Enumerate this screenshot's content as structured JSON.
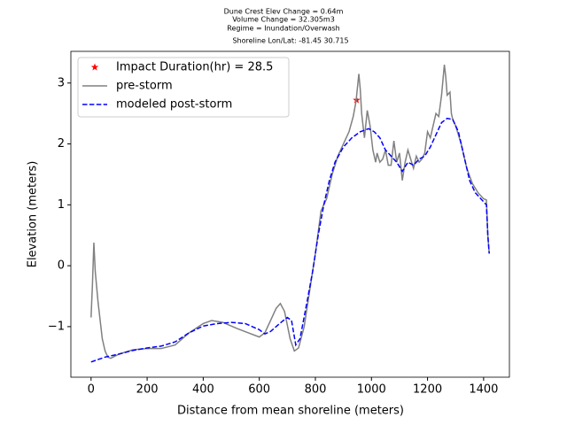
{
  "chart_data": {
    "type": "line",
    "title": [
      "Dune Crest Elev Change = 0.64m",
      "Volume Change = 32.305m3",
      "Regime = Inundation/Overwash",
      "Shoreline Lon/Lat: -81.45 30.715"
    ],
    "xlabel": "Distance from mean shoreline (meters)",
    "ylabel": "Elevation (meters)",
    "xlim": [
      -72,
      1492
    ],
    "ylim": [
      -1.83,
      3.52
    ],
    "xticks": [
      0,
      200,
      400,
      600,
      800,
      1000,
      1200,
      1400
    ],
    "yticks": [
      {
        "value": -1,
        "label": "−1"
      },
      0,
      1,
      2,
      3
    ],
    "legend": "upper left",
    "series": [
      {
        "name": "Impact Duration(hr) = 28.5",
        "color": "#ff0000",
        "style": "star",
        "x": [
          947
        ],
        "values": [
          2.72
        ]
      },
      {
        "name": "pre-storm",
        "color": "#808080",
        "style": "solid",
        "x": [
          0,
          5,
          10,
          15,
          25,
          40,
          50,
          60,
          70,
          100,
          150,
          200,
          250,
          300,
          350,
          400,
          430,
          470,
          520,
          560,
          600,
          620,
          640,
          660,
          675,
          690,
          710,
          725,
          740,
          760,
          780,
          800,
          820,
          840,
          860,
          880,
          900,
          920,
          935,
          945,
          955,
          960,
          965,
          975,
          985,
          995,
          1005,
          1015,
          1020,
          1030,
          1040,
          1050,
          1060,
          1070,
          1080,
          1090,
          1100,
          1110,
          1120,
          1130,
          1140,
          1150,
          1160,
          1170,
          1180,
          1190,
          1200,
          1210,
          1220,
          1230,
          1240,
          1250,
          1260,
          1265,
          1270,
          1280,
          1285,
          1290,
          1300,
          1320,
          1340,
          1360,
          1380,
          1400,
          1410,
          1415,
          1420
        ],
        "values": [
          -0.85,
          -0.3,
          0.38,
          -0.1,
          -0.6,
          -1.2,
          -1.4,
          -1.5,
          -1.52,
          -1.45,
          -1.38,
          -1.36,
          -1.36,
          -1.3,
          -1.1,
          -0.95,
          -0.9,
          -0.93,
          -1.03,
          -1.1,
          -1.17,
          -1.1,
          -0.9,
          -0.7,
          -0.62,
          -0.75,
          -1.2,
          -1.4,
          -1.35,
          -1.0,
          -0.4,
          0.2,
          0.9,
          1.1,
          1.5,
          1.8,
          2.0,
          2.2,
          2.45,
          2.7,
          3.15,
          2.9,
          2.5,
          2.1,
          2.55,
          2.3,
          1.9,
          1.7,
          1.85,
          1.7,
          1.75,
          1.9,
          1.65,
          1.65,
          2.05,
          1.7,
          1.85,
          1.4,
          1.7,
          1.9,
          1.75,
          1.6,
          1.8,
          1.7,
          1.75,
          1.85,
          2.2,
          2.1,
          2.3,
          2.5,
          2.45,
          2.8,
          3.3,
          3.1,
          2.8,
          2.85,
          2.5,
          2.4,
          2.3,
          2.0,
          1.6,
          1.35,
          1.2,
          1.1,
          1.08,
          0.5,
          0.2
        ]
      },
      {
        "name": "modeled post-storm",
        "color": "#0000ff",
        "style": "dashed",
        "x": [
          0,
          50,
          100,
          150,
          200,
          250,
          300,
          350,
          400,
          450,
          500,
          550,
          600,
          620,
          640,
          680,
          700,
          715,
          730,
          745,
          770,
          790,
          810,
          830,
          850,
          870,
          900,
          930,
          960,
          990,
          1010,
          1030,
          1050,
          1070,
          1090,
          1110,
          1130,
          1150,
          1170,
          1190,
          1210,
          1230,
          1250,
          1270,
          1290,
          1310,
          1330,
          1350,
          1370,
          1390,
          1410,
          1415,
          1420
        ],
        "values": [
          -1.58,
          -1.5,
          -1.45,
          -1.39,
          -1.35,
          -1.32,
          -1.25,
          -1.1,
          -0.99,
          -0.95,
          -0.93,
          -0.95,
          -1.05,
          -1.12,
          -1.08,
          -0.92,
          -0.85,
          -0.9,
          -1.3,
          -1.2,
          -0.6,
          -0.1,
          0.5,
          1.0,
          1.4,
          1.7,
          1.95,
          2.1,
          2.2,
          2.25,
          2.2,
          2.1,
          1.9,
          1.8,
          1.7,
          1.55,
          1.7,
          1.65,
          1.75,
          1.8,
          1.95,
          2.15,
          2.35,
          2.42,
          2.4,
          2.2,
          1.8,
          1.4,
          1.2,
          1.1,
          1.0,
          0.5,
          0.2
        ]
      }
    ]
  }
}
